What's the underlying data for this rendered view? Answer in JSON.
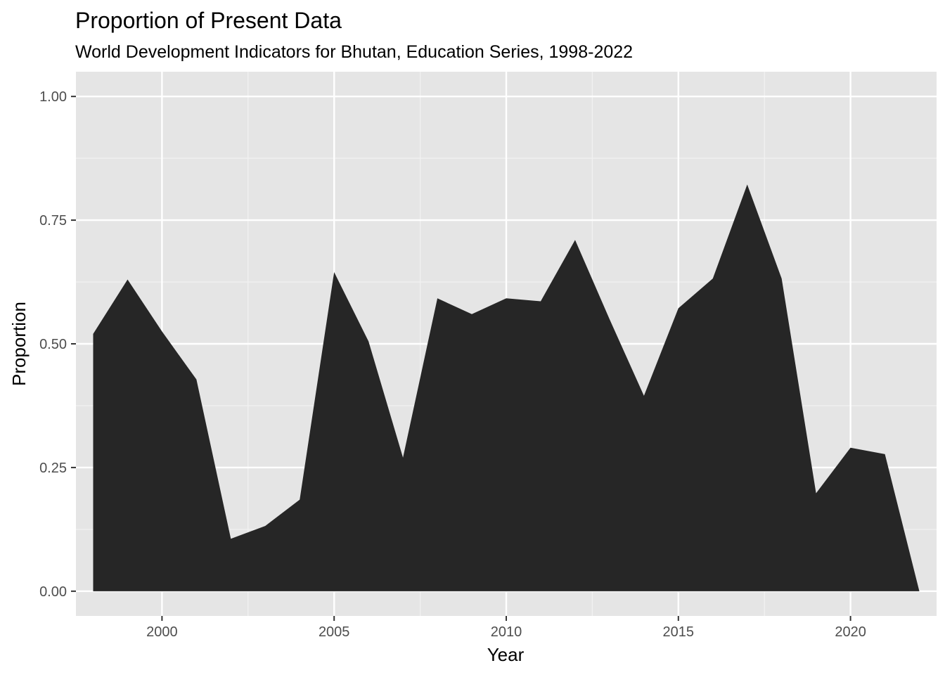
{
  "chart_data": {
    "type": "area",
    "title": "Proportion of Present Data",
    "subtitle": "World Development Indicators for Bhutan, Education Series, 1998-2022",
    "xlabel": "Year",
    "ylabel": "Proportion",
    "xlim": [
      1997.5,
      2022.5
    ],
    "ylim": [
      -0.05,
      1.05
    ],
    "x_ticks": [
      2000,
      2005,
      2010,
      2015,
      2020
    ],
    "x_tick_labels": [
      "2000",
      "2005",
      "2010",
      "2015",
      "2020"
    ],
    "y_ticks": [
      0,
      0.25,
      0.5,
      0.75,
      1
    ],
    "y_tick_labels": [
      "0.00",
      "0.25",
      "0.50",
      "0.75",
      "1.00"
    ],
    "grid": true,
    "legend": "none",
    "colors": {
      "panel": "#e5e5e5",
      "grid_major": "#ffffff",
      "grid_minor": "#f2f2f2",
      "fill": "#262626",
      "tick": "#333333"
    },
    "x": [
      1998,
      1999,
      2000,
      2001,
      2002,
      2003,
      2004,
      2005,
      2006,
      2007,
      2008,
      2009,
      2010,
      2011,
      2012,
      2013,
      2014,
      2015,
      2016,
      2017,
      2018,
      2019,
      2020,
      2021,
      2022
    ],
    "values": [
      0.52,
      0.63,
      0.525,
      0.428,
      0.106,
      0.132,
      0.185,
      0.645,
      0.505,
      0.27,
      0.592,
      0.56,
      0.592,
      0.586,
      0.71,
      0.55,
      0.395,
      0.572,
      0.632,
      0.822,
      0.632,
      0.198,
      0.29,
      0.277,
      0.0
    ]
  }
}
